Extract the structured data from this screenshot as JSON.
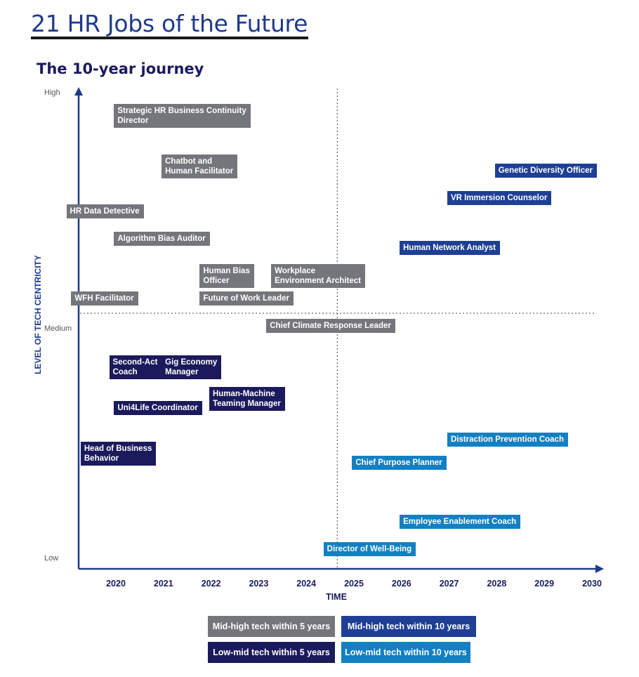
{
  "title": "21 HR Jobs of the Future",
  "subtitle": "The 10-year journey",
  "colors": {
    "mid_high_5": "#75767b",
    "mid_high_10": "#1e3f94",
    "low_mid_5": "#1b1a5c",
    "low_mid_10": "#1280c2",
    "axis": "#1e3a8a",
    "text": "#1a1a5e"
  },
  "legend": [
    {
      "key": "mid_high_5",
      "label": "Mid-high tech within 5 years"
    },
    {
      "key": "mid_high_10",
      "label": "Mid-high tech within 10 years"
    },
    {
      "key": "low_mid_5",
      "label": "Low-mid tech within 5 years"
    },
    {
      "key": "low_mid_10",
      "label": "Low-mid tech within 10 years"
    }
  ],
  "chart_data": {
    "type": "scatter",
    "xlabel": "TIME",
    "ylabel": "LEVEL OF TECH CENTRICITY",
    "x_ticks": [
      "2020",
      "2021",
      "2022",
      "2023",
      "2024",
      "2025",
      "2026",
      "2027",
      "2028",
      "2029",
      "2030"
    ],
    "xlim": [
      2019.2,
      2030.25
    ],
    "y_ticks": [
      "High",
      "Medium",
      "Low"
    ],
    "ylim": [
      0,
      1
    ],
    "y_scale": "qualitative (Low = 0, Medium = 0.5, High = 1)",
    "quadrant_dividers": {
      "x": 2024.65,
      "y": 0.5
    },
    "points": [
      {
        "label": "Strategic HR Business Continuity\nDirector",
        "x": 2020.3,
        "y": 0.98,
        "category": "mid_high_5"
      },
      {
        "label": "Chatbot and\nHuman Facilitator",
        "x": 2021.3,
        "y": 0.87,
        "category": "mid_high_5"
      },
      {
        "label": "HR Data Detective",
        "x": 2019.3,
        "y": 0.76,
        "category": "mid_high_5"
      },
      {
        "label": "Algorithm Bias Auditor",
        "x": 2020.3,
        "y": 0.7,
        "category": "mid_high_5"
      },
      {
        "label": "Human Bias\nOfficer",
        "x": 2022.1,
        "y": 0.63,
        "category": "mid_high_5"
      },
      {
        "label": "Workplace\nEnvironment Architect",
        "x": 2023.6,
        "y": 0.63,
        "category": "mid_high_5"
      },
      {
        "label": "WFH Facilitator",
        "x": 2019.4,
        "y": 0.57,
        "category": "mid_high_5"
      },
      {
        "label": "Future of Work Leader",
        "x": 2022.1,
        "y": 0.57,
        "category": "mid_high_5"
      },
      {
        "label": "Chief Climate Response Leader",
        "x": 2023.5,
        "y": 0.51,
        "category": "mid_high_5"
      },
      {
        "label": "Genetic Diversity Officer",
        "x": 2028.3,
        "y": 0.85,
        "category": "mid_high_10"
      },
      {
        "label": "VR Immersion Counselor",
        "x": 2027.3,
        "y": 0.79,
        "category": "mid_high_10"
      },
      {
        "label": "Human Network Analyst",
        "x": 2026.3,
        "y": 0.68,
        "category": "mid_high_10"
      },
      {
        "label": "Second-Act\nCoach",
        "x": 2020.2,
        "y": 0.43,
        "category": "low_mid_5"
      },
      {
        "label": "Gig Economy\nManager",
        "x": 2021.3,
        "y": 0.43,
        "category": "low_mid_5"
      },
      {
        "label": "Human-Machine\nTeaming Manager",
        "x": 2022.3,
        "y": 0.36,
        "category": "low_mid_5"
      },
      {
        "label": "Uni4Life Coordinator",
        "x": 2020.3,
        "y": 0.33,
        "category": "low_mid_5"
      },
      {
        "label": "Head of Business\nBehavior",
        "x": 2019.6,
        "y": 0.24,
        "category": "low_mid_5"
      },
      {
        "label": "Distraction Prevention Coach",
        "x": 2027.3,
        "y": 0.26,
        "category": "low_mid_10"
      },
      {
        "label": "Chief Purpose Planner",
        "x": 2025.3,
        "y": 0.21,
        "category": "low_mid_10"
      },
      {
        "label": "Employee Enablement Coach",
        "x": 2026.3,
        "y": 0.08,
        "category": "low_mid_10"
      },
      {
        "label": "Director of Well-Being",
        "x": 2024.7,
        "y": 0.02,
        "category": "low_mid_10"
      }
    ]
  }
}
